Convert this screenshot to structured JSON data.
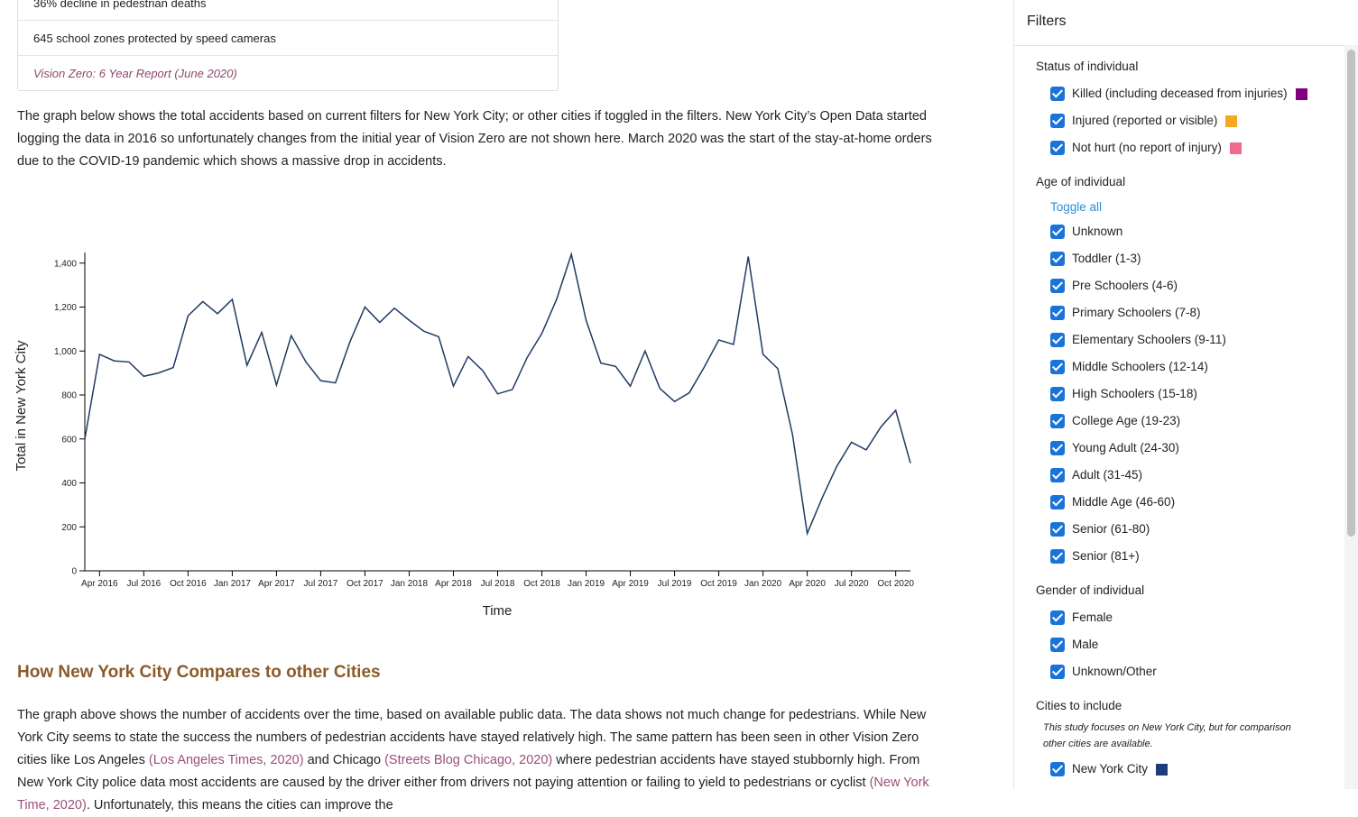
{
  "report_box": {
    "items": [
      "36% decline in pedestrian deaths",
      "645 school zones protected by speed cameras"
    ],
    "source": "Vision Zero: 6 Year Report (June 2020)"
  },
  "intro": "The graph below shows the total accidents based on current filters for New York City; or other cities if toggled in the filters. New York City’s Open Data started logging the data in 2016 so unfortunately changes from the initial year of Vision Zero are not shown here. March 2020 was the start of the stay-at-home orders due to the COVID-19 pandemic which shows a massive drop in accidents.",
  "chart_data": {
    "type": "line",
    "x_label": "Time",
    "y_label": "Total in New York City",
    "color": "#1f3a63",
    "x": [
      "2016-03",
      "2016-04",
      "2016-05",
      "2016-06",
      "2016-07",
      "2016-08",
      "2016-09",
      "2016-10",
      "2016-11",
      "2016-12",
      "2017-01",
      "2017-02",
      "2017-03",
      "2017-04",
      "2017-05",
      "2017-06",
      "2017-07",
      "2017-08",
      "2017-09",
      "2017-10",
      "2017-11",
      "2017-12",
      "2018-01",
      "2018-02",
      "2018-03",
      "2018-04",
      "2018-05",
      "2018-06",
      "2018-07",
      "2018-08",
      "2018-09",
      "2018-10",
      "2018-11",
      "2018-12",
      "2019-01",
      "2019-02",
      "2019-03",
      "2019-04",
      "2019-05",
      "2019-06",
      "2019-07",
      "2019-08",
      "2019-09",
      "2019-10",
      "2019-11",
      "2019-12",
      "2020-01",
      "2020-02",
      "2020-03",
      "2020-04",
      "2020-05",
      "2020-06",
      "2020-07",
      "2020-08",
      "2020-09",
      "2020-10",
      "2020-11"
    ],
    "values": [
      600,
      985,
      955,
      950,
      885,
      900,
      925,
      1160,
      1225,
      1170,
      1235,
      935,
      1085,
      845,
      1070,
      950,
      865,
      855,
      1045,
      1200,
      1130,
      1195,
      1140,
      1090,
      1065,
      840,
      975,
      910,
      805,
      825,
      970,
      1080,
      1235,
      1440,
      1140,
      945,
      930,
      840,
      1000,
      830,
      770,
      810,
      925,
      1050,
      1030,
      1430,
      985,
      920,
      620,
      170,
      330,
      475,
      585,
      550,
      655,
      730,
      490
    ],
    "xlim": [
      "2016-03",
      "2020-11"
    ],
    "xticks": [
      {
        "value": "2016-04",
        "label": "Apr 2016"
      },
      {
        "value": "2016-07",
        "label": "Jul 2016"
      },
      {
        "value": "2016-10",
        "label": "Oct 2016"
      },
      {
        "value": "2017-01",
        "label": "Jan 2017"
      },
      {
        "value": "2017-04",
        "label": "Apr 2017"
      },
      {
        "value": "2017-07",
        "label": "Jul 2017"
      },
      {
        "value": "2017-10",
        "label": "Oct 2017"
      },
      {
        "value": "2018-01",
        "label": "Jan 2018"
      },
      {
        "value": "2018-04",
        "label": "Apr 2018"
      },
      {
        "value": "2018-07",
        "label": "Jul 2018"
      },
      {
        "value": "2018-10",
        "label": "Oct 2018"
      },
      {
        "value": "2019-01",
        "label": "Jan 2019"
      },
      {
        "value": "2019-04",
        "label": "Apr 2019"
      },
      {
        "value": "2019-07",
        "label": "Jul 2019"
      },
      {
        "value": "2019-10",
        "label": "Oct 2019"
      },
      {
        "value": "2020-01",
        "label": "Jan 2020"
      },
      {
        "value": "2020-04",
        "label": "Apr 2020"
      },
      {
        "value": "2020-07",
        "label": "Jul 2020"
      },
      {
        "value": "2020-10",
        "label": "Oct 2020"
      }
    ],
    "ylim": [
      0,
      1440
    ],
    "yticks": [
      0,
      200,
      400,
      600,
      800,
      {
        "value": 1000,
        "label": "1,000"
      },
      {
        "value": 1200,
        "label": "1,200"
      },
      {
        "value": 1400,
        "label": "1,400"
      }
    ]
  },
  "section": {
    "heading": "How New York City Compares to other Cities",
    "parts": [
      "The graph above shows the number of accidents over the time, based on available public data. The data shows not much change for pedestrians. While New York City seems to state the success the numbers of pedestrian accidents have stayed relatively high. The same pattern has been seen in other Vision Zero cities like Los Angeles ",
      "(Los Angeles Times, 2020)",
      " and Chicago ",
      "(Streets Blog Chicago, 2020)",
      " where pedestrian accidents have stayed stubbornly high. From New York City police data most accidents are caused by the driver either from drivers not paying attention or failing to yield to pedestrians or cyclist ",
      "(New York Time, 2020)",
      ". Unfortunately, this means the cities can improve the"
    ]
  },
  "filters": {
    "title": "Filters",
    "groups": [
      {
        "heading": "Status of individual",
        "options": [
          {
            "label": "Killed (including deceased from injuries)",
            "color": "#800080"
          },
          {
            "label": "Injured (reported or visible)",
            "color": "#f5a623"
          },
          {
            "label": "Not hurt (no report of injury)",
            "color": "#ee6b8f"
          }
        ]
      },
      {
        "heading": "Age of individual",
        "toggle": "Toggle all",
        "options": [
          {
            "label": "Unknown"
          },
          {
            "label": "Toddler (1-3)"
          },
          {
            "label": "Pre Schoolers (4-6)"
          },
          {
            "label": "Primary Schoolers (7-8)"
          },
          {
            "label": "Elementary Schoolers (9-11)"
          },
          {
            "label": "Middle Schoolers (12-14)"
          },
          {
            "label": "High Schoolers (15-18)"
          },
          {
            "label": "College Age (19-23)"
          },
          {
            "label": "Young Adult (24-30)"
          },
          {
            "label": "Adult (31-45)"
          },
          {
            "label": "Middle Age (46-60)"
          },
          {
            "label": "Senior (61-80)"
          },
          {
            "label": "Senior (81+)"
          }
        ]
      },
      {
        "heading": "Gender of individual",
        "options": [
          {
            "label": "Female"
          },
          {
            "label": "Male"
          },
          {
            "label": "Unknown/Other"
          }
        ]
      },
      {
        "heading": "Cities to include",
        "note": "This study focuses on New York City, but for comparison other cities are available.",
        "options": [
          {
            "label": "New York City",
            "color": "#1f3d7a"
          }
        ]
      }
    ]
  }
}
